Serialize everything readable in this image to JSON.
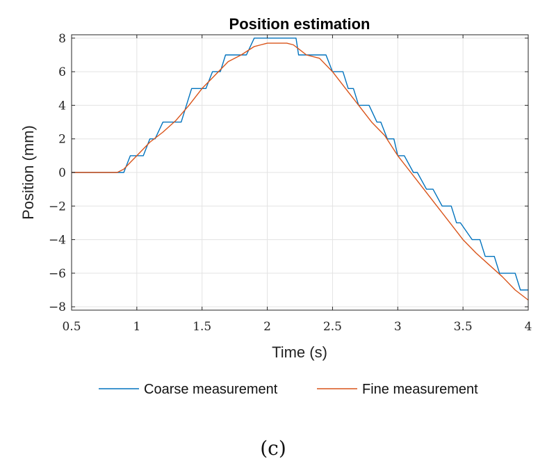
{
  "chart_data": {
    "type": "line",
    "title": "Position estimation",
    "xlabel": "Time (s)",
    "ylabel": "Position (mm)",
    "xlim": [
      0.5,
      4
    ],
    "ylim": [
      -8.2,
      8.2
    ],
    "xticks": [
      0.5,
      1,
      1.5,
      2,
      2.5,
      3,
      3.5,
      4
    ],
    "xtick_labels": [
      "0.5",
      "1",
      "1.5",
      "2",
      "2.5",
      "3",
      "3.5",
      "4"
    ],
    "yticks": [
      8,
      6,
      4,
      2,
      0,
      -2,
      -4,
      -6,
      -8
    ],
    "ytick_labels": [
      "8",
      "6",
      "4",
      "2",
      "0",
      "−2",
      "−4",
      "−6",
      "−8"
    ],
    "grid": true,
    "legend_position": "bottom-outside",
    "series": [
      {
        "name": "Coarse measurement",
        "color": "#0072BD",
        "x": [
          0.5,
          0.88,
          0.9,
          0.95,
          1.0,
          1.05,
          1.1,
          1.14,
          1.2,
          1.3,
          1.34,
          1.42,
          1.45,
          1.53,
          1.58,
          1.6,
          1.64,
          1.68,
          1.72,
          1.78,
          1.84,
          1.9,
          1.92,
          2.0,
          2.1,
          2.18,
          2.22,
          2.24,
          2.28,
          2.35,
          2.45,
          2.5,
          2.53,
          2.58,
          2.62,
          2.66,
          2.7,
          2.75,
          2.78,
          2.84,
          2.87,
          2.92,
          2.97,
          3.0,
          3.05,
          3.12,
          3.15,
          3.22,
          3.27,
          3.34,
          3.41,
          3.45,
          3.48,
          3.57,
          3.6,
          3.63,
          3.67,
          3.74,
          3.78,
          3.84,
          3.9,
          3.94,
          4.0
        ],
        "y": [
          0,
          0,
          0,
          1,
          1,
          1,
          2,
          2,
          3,
          3,
          3,
          5,
          5,
          5,
          6,
          6,
          6,
          7,
          7,
          7,
          7,
          8,
          8,
          8,
          8,
          8,
          8,
          7,
          7,
          7,
          7,
          6,
          6,
          6,
          5,
          5,
          4,
          4,
          4,
          3,
          3,
          2,
          2,
          1,
          1,
          0,
          0,
          -1,
          -1,
          -2,
          -2,
          -3,
          -3,
          -4,
          -4,
          -4,
          -5,
          -5,
          -6,
          -6,
          -6,
          -7,
          -7
        ]
      },
      {
        "name": "Fine measurement",
        "color": "#D95319",
        "x": [
          0.5,
          0.85,
          0.9,
          0.95,
          1.0,
          1.1,
          1.2,
          1.3,
          1.4,
          1.5,
          1.6,
          1.7,
          1.8,
          1.9,
          1.95,
          2.0,
          2.05,
          2.1,
          2.15,
          2.2,
          2.25,
          2.3,
          2.4,
          2.5,
          2.6,
          2.7,
          2.8,
          2.9,
          3.0,
          3.1,
          3.2,
          3.3,
          3.4,
          3.5,
          3.6,
          3.7,
          3.8,
          3.9,
          4.0
        ],
        "y": [
          0,
          0,
          0.2,
          0.6,
          1.0,
          1.8,
          2.4,
          3.1,
          4.0,
          5.0,
          5.8,
          6.6,
          7.0,
          7.5,
          7.6,
          7.7,
          7.7,
          7.7,
          7.7,
          7.6,
          7.3,
          7.0,
          6.8,
          6.0,
          5.0,
          4.0,
          3.0,
          2.2,
          1.0,
          0.0,
          -1.0,
          -2.0,
          -3.0,
          -4.0,
          -4.8,
          -5.5,
          -6.2,
          -7.0,
          -7.6
        ]
      }
    ]
  },
  "caption": "(c)"
}
